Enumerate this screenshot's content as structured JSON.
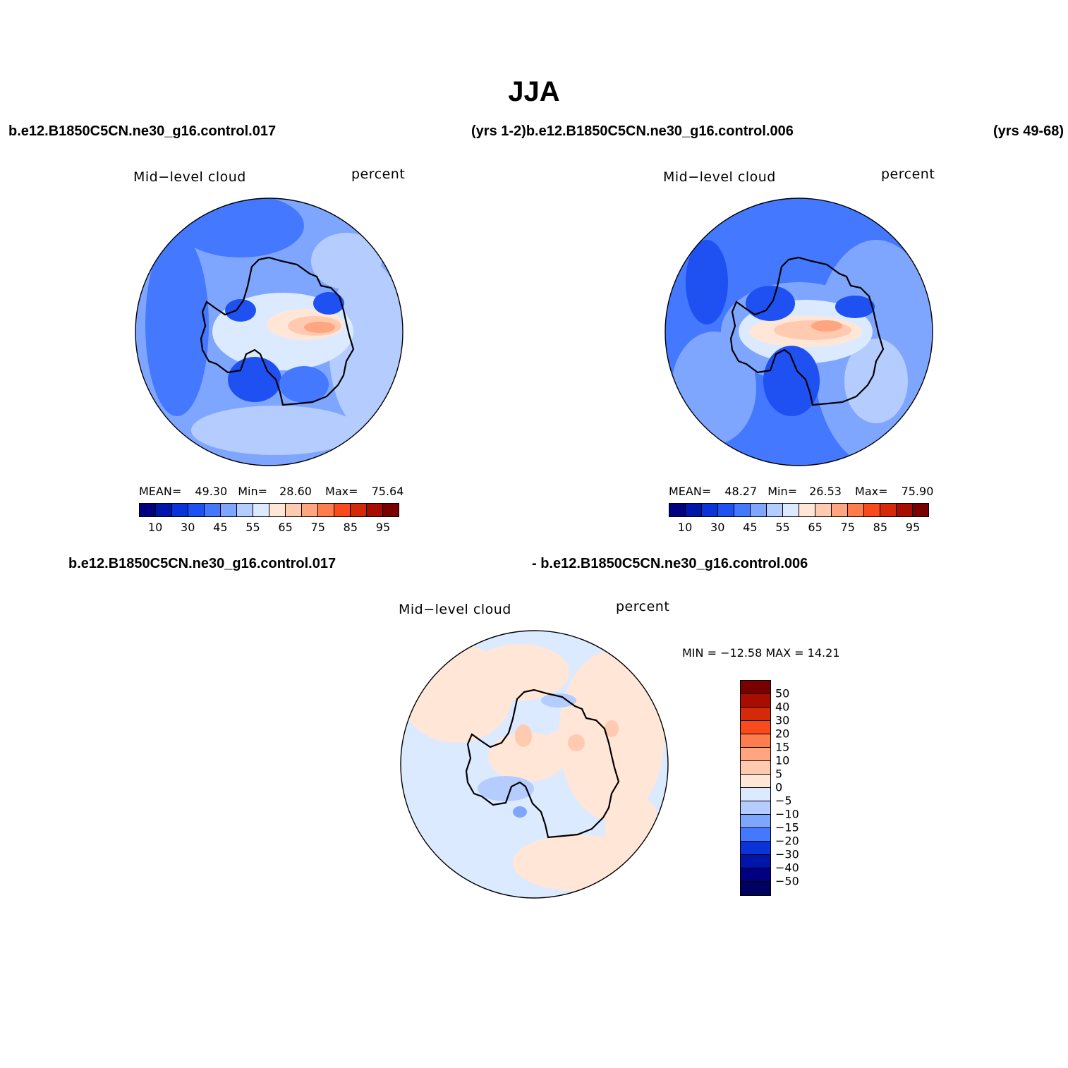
{
  "figure": {
    "title": "JJA",
    "case_left": "b.e12.B1850C5CN.ne30_g16.control.017",
    "case_mid": "(yrs 1-2)b.e12.B1850C5CN.ne30_g16.control.006",
    "case_right": "(yrs 49-68)",
    "diff_left": "b.e12.B1850C5CN.ne30_g16.control.017",
    "diff_right": "- b.e12.B1850C5CN.ne30_g16.control.006"
  },
  "panels": {
    "p1": {
      "variable": "Mid−level cloud",
      "units": "percent",
      "mean_label": "MEAN=",
      "mean": "49.30",
      "min_label": "Min=",
      "min": "28.60",
      "max_label": "Max=",
      "max": "75.64"
    },
    "p2": {
      "variable": "Mid−level cloud",
      "units": "percent",
      "mean_label": "MEAN=",
      "mean": "48.27",
      "min_label": "Min=",
      "min": "26.53",
      "max_label": "Max=",
      "max": "75.90"
    },
    "p3": {
      "variable": "Mid−level cloud",
      "units": "percent",
      "minmax": "MIN = −12.58 MAX =   14.21"
    }
  },
  "colorbar_abs": {
    "colors": [
      "#000080",
      "#0016aa",
      "#0a34d8",
      "#1f50f2",
      "#4478ff",
      "#7fa6ff",
      "#b5ccff",
      "#dceaff",
      "#ffe6d6",
      "#ffcab0",
      "#ffa57f",
      "#ff7c4f",
      "#f84a1c",
      "#d42a0a",
      "#a80d00",
      "#7a0000"
    ],
    "tick_labels": [
      "10",
      "30",
      "45",
      "55",
      "65",
      "75",
      "85",
      "95"
    ]
  },
  "colorbar_diff": {
    "colors": [
      "#7a0000",
      "#a80d00",
      "#d42a0a",
      "#f84a1c",
      "#ff7c4f",
      "#ffa57f",
      "#ffcab0",
      "#ffe6d6",
      "#dceaff",
      "#b5ccff",
      "#7fa6ff",
      "#4478ff",
      "#0a34d8",
      "#0016aa",
      "#000080",
      "#000060"
    ],
    "tick_labels": [
      "50",
      "40",
      "30",
      "20",
      "15",
      "10",
      "5",
      "0",
      "−5",
      "−10",
      "−15",
      "−20",
      "−30",
      "−40",
      "−50"
    ]
  },
  "chart_data": [
    {
      "type": "heatmap",
      "title": "Mid−level cloud",
      "units": "percent",
      "projection": "south polar stereographic",
      "stats": {
        "mean": 49.3,
        "min": 28.6,
        "max": 75.64
      },
      "levels": [
        10,
        30,
        45,
        55,
        65,
        75,
        85,
        95
      ],
      "case": "b.e12.B1850C5CN.ne30_g16.control.017"
    },
    {
      "type": "heatmap",
      "title": "Mid−level cloud",
      "units": "percent",
      "projection": "south polar stereographic",
      "stats": {
        "mean": 48.27,
        "min": 26.53,
        "max": 75.9
      },
      "levels": [
        10,
        30,
        45,
        55,
        65,
        75,
        85,
        95
      ],
      "case": "b.e12.B1850C5CN.ne30_g16.control.006"
    },
    {
      "type": "heatmap",
      "title": "Mid−level cloud",
      "units": "percent",
      "projection": "south polar stereographic",
      "stats": {
        "min": -12.58,
        "max": 14.21
      },
      "levels": [
        -50,
        -40,
        -30,
        -20,
        -15,
        -10,
        -5,
        0,
        5,
        10,
        15,
        20,
        30,
        40,
        50
      ]
    }
  ]
}
